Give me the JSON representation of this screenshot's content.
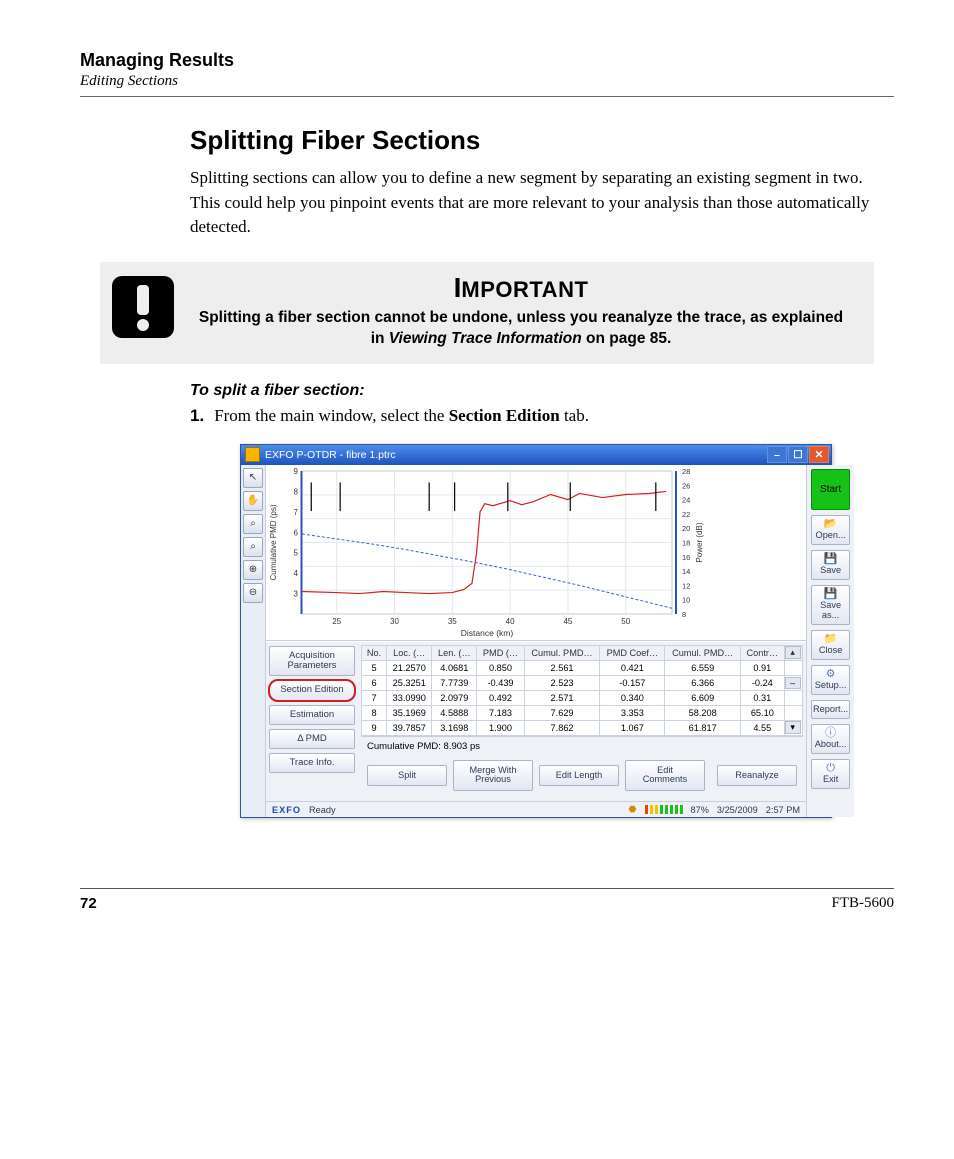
{
  "header": {
    "title": "Managing Results",
    "subtitle": "Editing Sections"
  },
  "section_title": "Splitting Fiber Sections",
  "intro": "Splitting sections can allow you to define a new segment by separating an existing segment in two. This could help you pinpoint events that are more relevant to your analysis than those automatically detected.",
  "important": {
    "label_big": "I",
    "label_rest": "MPORTANT",
    "body_before": "Splitting a fiber section cannot be undone, unless you reanalyze the trace, as explained in ",
    "ref_text": "Viewing Trace Information",
    "body_after": " on page 85."
  },
  "subhead": "To split a fiber section:",
  "step1": {
    "num": "1.",
    "before": "From the main window, select the ",
    "bold": "Section Edition",
    "after": " tab."
  },
  "footer": {
    "page": "72",
    "model": "FTB-5600"
  },
  "screenshot": {
    "window_title": "EXFO P-OTDR - fibre 1.ptrc",
    "toolbar_icons": [
      "↖",
      "✋",
      "⌕",
      "⌕",
      "⊕",
      "⊖"
    ],
    "chart": {
      "type": "line",
      "background_color": "#ffffff",
      "grid_color": "#e3e7ef",
      "xlabel": "Distance (km)",
      "ylabel_left": "Cumulative PMD (ps)",
      "ylabel_right": "Power (dB)",
      "left_ylim": [
        2,
        9
      ],
      "left_ticks": [
        3,
        4,
        5,
        6,
        7,
        8,
        9
      ],
      "right_ylim": [
        8,
        28
      ],
      "right_ticks": [
        8,
        10,
        12,
        14,
        16,
        18,
        20,
        22,
        24,
        26,
        28
      ],
      "xlim": [
        22,
        54
      ],
      "xticks": [
        25,
        30,
        35,
        40,
        45,
        50
      ],
      "series": [
        {
          "name": "pmd",
          "color": "#d22020",
          "width": 1.2,
          "points": [
            [
              22,
              3.1
            ],
            [
              25,
              3.05
            ],
            [
              27,
              3.0
            ],
            [
              29,
              3.1
            ],
            [
              31,
              3.05
            ],
            [
              33,
              3.0
            ],
            [
              35,
              3.05
            ],
            [
              36,
              3.2
            ],
            [
              36.7,
              3.5
            ],
            [
              37.1,
              5.0
            ],
            [
              37.4,
              7.0
            ],
            [
              37.8,
              7.4
            ],
            [
              38.5,
              7.3
            ],
            [
              40,
              7.55
            ],
            [
              41,
              7.35
            ],
            [
              42,
              7.5
            ],
            [
              43.5,
              7.85
            ],
            [
              45,
              7.6
            ],
            [
              46,
              7.9
            ],
            [
              48,
              7.7
            ],
            [
              50,
              7.85
            ],
            [
              52,
              7.9
            ],
            [
              53.5,
              8.0
            ]
          ]
        },
        {
          "name": "power",
          "color": "#3a5fd6",
          "width": 1,
          "dash": "3,2",
          "points": [
            [
              22,
              19.2
            ],
            [
              25,
              18.5
            ],
            [
              28,
              17.8
            ],
            [
              31,
              17.0
            ],
            [
              34,
              16.1
            ],
            [
              37,
              15.2
            ],
            [
              40,
              14.2
            ],
            [
              43,
              13.1
            ],
            [
              46,
              12.0
            ],
            [
              49,
              10.8
            ],
            [
              52,
              9.6
            ],
            [
              54,
              8.8
            ]
          ]
        }
      ],
      "event_markers_x": [
        22.8,
        25.3,
        33.0,
        35.2,
        39.8,
        45.2,
        52.6
      ],
      "marker_color": "#000000"
    },
    "left_tabs": [
      "Acquisition Parameters",
      "Section Edition",
      "Estimation",
      "Δ PMD",
      "Trace Info."
    ],
    "left_tab_selected_index": 1,
    "table": {
      "columns": [
        "No.",
        "Loc. (…",
        "Len. (…",
        "PMD (…",
        "Cumul. PMD…",
        "PMD Coef…",
        "Cumul. PMD…",
        "Contr…"
      ],
      "rows": [
        [
          "5",
          "21.2570",
          "4.0681",
          "0.850",
          "2.561",
          "0.421",
          "6.559",
          "0.91"
        ],
        [
          "6",
          "25.3251",
          "7.7739",
          "-0.439",
          "2.523",
          "-0.157",
          "6.366",
          "-0.24"
        ],
        [
          "7",
          "33.0990",
          "2.0979",
          "0.492",
          "2.571",
          "0.340",
          "6.609",
          "0.31"
        ],
        [
          "8",
          "35.1969",
          "4.5888",
          "7.183",
          "7.629",
          "3.353",
          "58.208",
          "65.10"
        ],
        [
          "9",
          "39.7857",
          "3.1698",
          "1.900",
          "7.862",
          "1.067",
          "61.817",
          "4.55"
        ]
      ]
    },
    "cumulative_label": "Cumulative PMD: 8.903 ps",
    "bottom_buttons": [
      "Split",
      "Merge With Previous",
      "Edit Length",
      "Edit Comments"
    ],
    "reanalyze": "Reanalyze",
    "right_buttons": {
      "start": "Start",
      "open": "Open...",
      "save": "Save",
      "saveas": "Save as...",
      "close": "Close",
      "setup": "Setup...",
      "report": "Report...",
      "about": "About...",
      "exit": "Exit"
    },
    "status": {
      "brand": "EXFO",
      "ready": "Ready",
      "battery": "87%",
      "date": "3/25/2009",
      "time": "2:57 PM"
    }
  }
}
